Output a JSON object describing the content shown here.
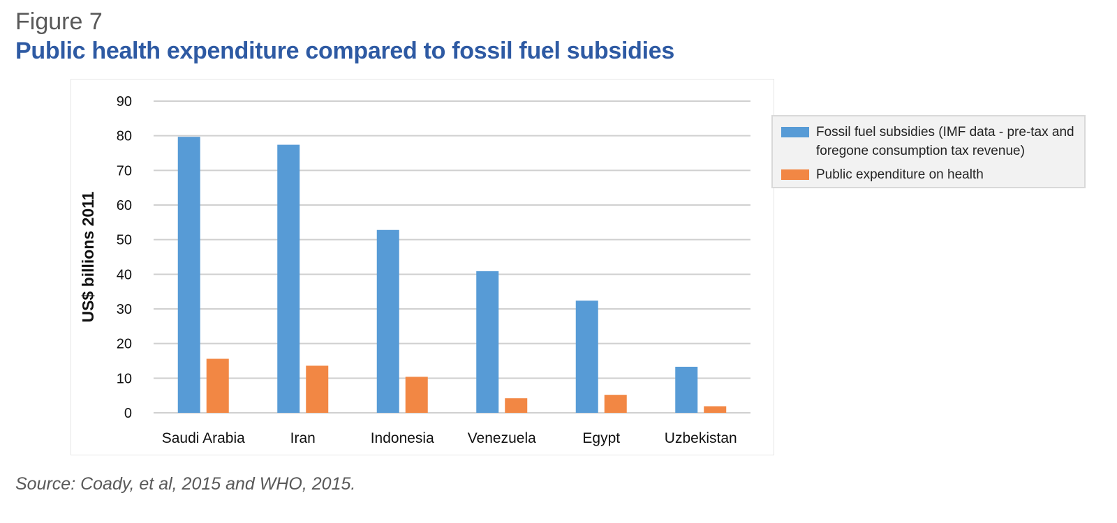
{
  "figure": {
    "label": "Figure 7",
    "title": "Public health expenditure compared to fossil fuel subsidies",
    "source": "Source: Coady, et al, 2015 and WHO, 2015."
  },
  "colors": {
    "title": "#2e5aa3",
    "fossil": "#579bd6",
    "health": "#f28744",
    "grid": "#d0d0d0"
  },
  "chart_data": {
    "type": "bar",
    "title": "Public health expenditure compared to fossil fuel subsidies",
    "xlabel": "",
    "ylabel": "US$ billions 2011",
    "ylim": [
      0,
      90
    ],
    "yticks": [
      0,
      10,
      20,
      30,
      40,
      50,
      60,
      70,
      80,
      90
    ],
    "grid": true,
    "legend_position": "right",
    "categories": [
      "Saudi Arabia",
      "Iran",
      "Indonesia",
      "Venezuela",
      "Egypt",
      "Uzbekistan"
    ],
    "series": [
      {
        "name": "Fossil fuel subsidies (IMF data - pre-tax and foregone consumption tax revenue)",
        "color": "#579bd6",
        "values": [
          79.7,
          77.4,
          52.8,
          40.9,
          32.4,
          13.3
        ]
      },
      {
        "name": "Public expenditure on health",
        "color": "#f28744",
        "values": [
          15.6,
          13.6,
          10.4,
          4.2,
          5.2,
          1.9
        ]
      }
    ]
  }
}
